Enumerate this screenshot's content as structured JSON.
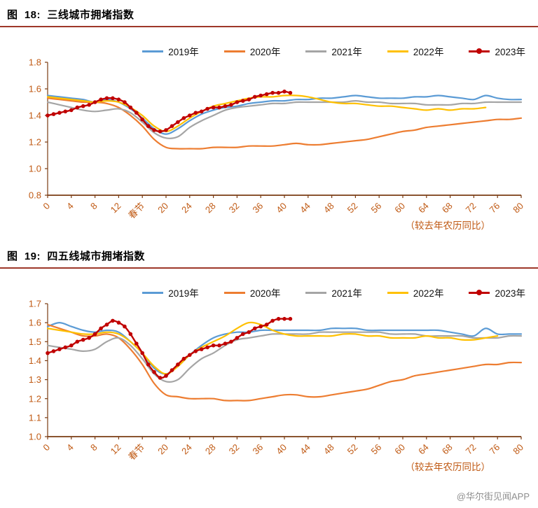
{
  "page": {
    "watermark": "@华尔街见闻APP"
  },
  "style": {
    "tick_label_color": "#c05a14",
    "axis_color": "#7a3b12",
    "title_rule_color": "#9e382a",
    "watermark_color": "#8f8f8f",
    "series_colors": {
      "y2019": "#5b9bd5",
      "y2020": "#ed7d31",
      "y2021": "#a5a5a5",
      "y2022": "#ffc000",
      "y2023": "#c00000"
    }
  },
  "chart_data": [
    {
      "type": "line",
      "title": "图  18:  三线城市拥堵指数",
      "xlabel": "（较去年农历同比）",
      "xlim": [
        0,
        80
      ],
      "ylim": [
        0.8,
        1.8
      ],
      "yticks": [
        0.8,
        1.0,
        1.2,
        1.4,
        1.6,
        1.8
      ],
      "xticks": [
        {
          "v": 0,
          "label": "0"
        },
        {
          "v": 4,
          "label": "4"
        },
        {
          "v": 8,
          "label": "8"
        },
        {
          "v": 12,
          "label": "12"
        },
        {
          "v": 16,
          "label": "春节"
        },
        {
          "v": 20,
          "label": "20"
        },
        {
          "v": 24,
          "label": "24"
        },
        {
          "v": 28,
          "label": "28"
        },
        {
          "v": 32,
          "label": "32"
        },
        {
          "v": 36,
          "label": "36"
        },
        {
          "v": 40,
          "label": "40"
        },
        {
          "v": 44,
          "label": "44"
        },
        {
          "v": 48,
          "label": "48"
        },
        {
          "v": 52,
          "label": "52"
        },
        {
          "v": 56,
          "label": "56"
        },
        {
          "v": 60,
          "label": "60"
        },
        {
          "v": 64,
          "label": "64"
        },
        {
          "v": 68,
          "label": "68"
        },
        {
          "v": 72,
          "label": "72"
        },
        {
          "v": 76,
          "label": "76"
        },
        {
          "v": 80,
          "label": "80"
        }
      ],
      "legend_position": "top",
      "grid": false,
      "series": [
        {
          "name": "2019年",
          "color": "#5b9bd5",
          "marker": false,
          "x0": 0,
          "dx": 2,
          "values": [
            1.55,
            1.54,
            1.53,
            1.52,
            1.5,
            1.52,
            1.5,
            1.45,
            1.38,
            1.3,
            1.26,
            1.3,
            1.36,
            1.41,
            1.44,
            1.46,
            1.47,
            1.49,
            1.5,
            1.51,
            1.51,
            1.52,
            1.52,
            1.53,
            1.53,
            1.54,
            1.55,
            1.54,
            1.53,
            1.53,
            1.53,
            1.54,
            1.54,
            1.55,
            1.54,
            1.53,
            1.52,
            1.55,
            1.53,
            1.52,
            1.52
          ]
        },
        {
          "name": "2020年",
          "color": "#ed7d31",
          "marker": false,
          "x0": 0,
          "dx": 2,
          "values": [
            1.53,
            1.52,
            1.51,
            1.5,
            1.5,
            1.49,
            1.46,
            1.4,
            1.32,
            1.22,
            1.16,
            1.15,
            1.15,
            1.15,
            1.16,
            1.16,
            1.16,
            1.17,
            1.17,
            1.17,
            1.18,
            1.19,
            1.18,
            1.18,
            1.19,
            1.2,
            1.21,
            1.22,
            1.24,
            1.26,
            1.28,
            1.29,
            1.31,
            1.32,
            1.33,
            1.34,
            1.35,
            1.36,
            1.37,
            1.37,
            1.38
          ]
        },
        {
          "name": "2021年",
          "color": "#a5a5a5",
          "marker": false,
          "x0": 0,
          "dx": 2,
          "values": [
            1.5,
            1.48,
            1.46,
            1.44,
            1.43,
            1.44,
            1.45,
            1.42,
            1.35,
            1.27,
            1.23,
            1.24,
            1.31,
            1.36,
            1.4,
            1.44,
            1.46,
            1.47,
            1.48,
            1.49,
            1.49,
            1.5,
            1.5,
            1.5,
            1.5,
            1.5,
            1.51,
            1.5,
            1.5,
            1.49,
            1.49,
            1.49,
            1.48,
            1.48,
            1.48,
            1.49,
            1.49,
            1.5,
            1.5,
            1.5,
            1.5
          ]
        },
        {
          "name": "2022年",
          "color": "#ffc000",
          "marker": false,
          "x0": 0,
          "dx": 2,
          "values": [
            1.54,
            1.53,
            1.52,
            1.51,
            1.5,
            1.51,
            1.5,
            1.46,
            1.4,
            1.32,
            1.28,
            1.32,
            1.38,
            1.43,
            1.47,
            1.49,
            1.51,
            1.53,
            1.54,
            1.54,
            1.55,
            1.55,
            1.54,
            1.52,
            1.5,
            1.49,
            1.49,
            1.48,
            1.47,
            1.47,
            1.46,
            1.45,
            1.44,
            1.45,
            1.44,
            1.45,
            1.45,
            1.46
          ]
        },
        {
          "name": "2023年",
          "color": "#c00000",
          "marker": true,
          "x0": 0,
          "dx": 1,
          "values": [
            1.4,
            1.41,
            1.42,
            1.43,
            1.44,
            1.46,
            1.47,
            1.48,
            1.5,
            1.52,
            1.53,
            1.53,
            1.52,
            1.5,
            1.46,
            1.42,
            1.37,
            1.32,
            1.29,
            1.28,
            1.29,
            1.32,
            1.35,
            1.38,
            1.4,
            1.42,
            1.43,
            1.45,
            1.46,
            1.46,
            1.47,
            1.48,
            1.5,
            1.51,
            1.52,
            1.54,
            1.55,
            1.56,
            1.57,
            1.57,
            1.58,
            1.57
          ]
        }
      ]
    },
    {
      "type": "line",
      "title": "图  19:  四五线城市拥堵指数",
      "xlabel": "（较去年农历同比）",
      "xlim": [
        0,
        80
      ],
      "ylim": [
        1.0,
        1.7
      ],
      "yticks": [
        1.0,
        1.1,
        1.2,
        1.3,
        1.4,
        1.5,
        1.6,
        1.7
      ],
      "xticks": [
        {
          "v": 0,
          "label": "0"
        },
        {
          "v": 4,
          "label": "4"
        },
        {
          "v": 8,
          "label": "8"
        },
        {
          "v": 12,
          "label": "12"
        },
        {
          "v": 16,
          "label": "春节"
        },
        {
          "v": 20,
          "label": "20"
        },
        {
          "v": 24,
          "label": "24"
        },
        {
          "v": 28,
          "label": "28"
        },
        {
          "v": 32,
          "label": "32"
        },
        {
          "v": 36,
          "label": "36"
        },
        {
          "v": 40,
          "label": "40"
        },
        {
          "v": 44,
          "label": "44"
        },
        {
          "v": 48,
          "label": "48"
        },
        {
          "v": 52,
          "label": "52"
        },
        {
          "v": 56,
          "label": "56"
        },
        {
          "v": 60,
          "label": "60"
        },
        {
          "v": 64,
          "label": "64"
        },
        {
          "v": 68,
          "label": "68"
        },
        {
          "v": 72,
          "label": "72"
        },
        {
          "v": 76,
          "label": "76"
        },
        {
          "v": 80,
          "label": "80"
        }
      ],
      "legend_position": "top",
      "grid": false,
      "series": [
        {
          "name": "2019年",
          "color": "#5b9bd5",
          "marker": false,
          "x0": 0,
          "dx": 2,
          "values": [
            1.58,
            1.6,
            1.58,
            1.56,
            1.55,
            1.56,
            1.55,
            1.5,
            1.44,
            1.36,
            1.33,
            1.37,
            1.43,
            1.48,
            1.52,
            1.54,
            1.55,
            1.55,
            1.56,
            1.56,
            1.56,
            1.56,
            1.56,
            1.56,
            1.57,
            1.57,
            1.57,
            1.56,
            1.56,
            1.56,
            1.56,
            1.56,
            1.56,
            1.56,
            1.55,
            1.54,
            1.53,
            1.57,
            1.54,
            1.54,
            1.54
          ]
        },
        {
          "name": "2020年",
          "color": "#ed7d31",
          "marker": false,
          "x0": 0,
          "dx": 2,
          "values": [
            1.59,
            1.57,
            1.55,
            1.53,
            1.53,
            1.54,
            1.52,
            1.46,
            1.38,
            1.28,
            1.22,
            1.21,
            1.2,
            1.2,
            1.2,
            1.19,
            1.19,
            1.19,
            1.2,
            1.21,
            1.22,
            1.22,
            1.21,
            1.21,
            1.22,
            1.23,
            1.24,
            1.25,
            1.27,
            1.29,
            1.3,
            1.32,
            1.33,
            1.34,
            1.35,
            1.36,
            1.37,
            1.38,
            1.38,
            1.39,
            1.39
          ]
        },
        {
          "name": "2021年",
          "color": "#a5a5a5",
          "marker": false,
          "x0": 0,
          "dx": 2,
          "values": [
            1.48,
            1.47,
            1.46,
            1.45,
            1.46,
            1.5,
            1.52,
            1.48,
            1.41,
            1.33,
            1.29,
            1.3,
            1.36,
            1.41,
            1.44,
            1.48,
            1.51,
            1.52,
            1.53,
            1.54,
            1.54,
            1.54,
            1.54,
            1.55,
            1.55,
            1.55,
            1.55,
            1.55,
            1.55,
            1.54,
            1.54,
            1.54,
            1.53,
            1.53,
            1.53,
            1.53,
            1.52,
            1.52,
            1.52,
            1.53,
            1.53
          ]
        },
        {
          "name": "2022年",
          "color": "#ffc000",
          "marker": false,
          "x0": 0,
          "dx": 2,
          "values": [
            1.57,
            1.56,
            1.55,
            1.54,
            1.54,
            1.55,
            1.54,
            1.5,
            1.44,
            1.37,
            1.33,
            1.37,
            1.43,
            1.47,
            1.5,
            1.53,
            1.57,
            1.6,
            1.59,
            1.56,
            1.54,
            1.53,
            1.53,
            1.53,
            1.53,
            1.54,
            1.54,
            1.53,
            1.53,
            1.52,
            1.52,
            1.52,
            1.53,
            1.52,
            1.52,
            1.51,
            1.51,
            1.52,
            1.53
          ]
        },
        {
          "name": "2023年",
          "color": "#c00000",
          "marker": true,
          "x0": 0,
          "dx": 1,
          "values": [
            1.44,
            1.45,
            1.46,
            1.47,
            1.48,
            1.5,
            1.51,
            1.52,
            1.54,
            1.57,
            1.59,
            1.61,
            1.6,
            1.58,
            1.54,
            1.49,
            1.44,
            1.38,
            1.34,
            1.31,
            1.32,
            1.35,
            1.38,
            1.41,
            1.43,
            1.45,
            1.46,
            1.47,
            1.48,
            1.48,
            1.49,
            1.5,
            1.52,
            1.54,
            1.55,
            1.57,
            1.58,
            1.59,
            1.61,
            1.62,
            1.62,
            1.62
          ]
        }
      ]
    }
  ]
}
